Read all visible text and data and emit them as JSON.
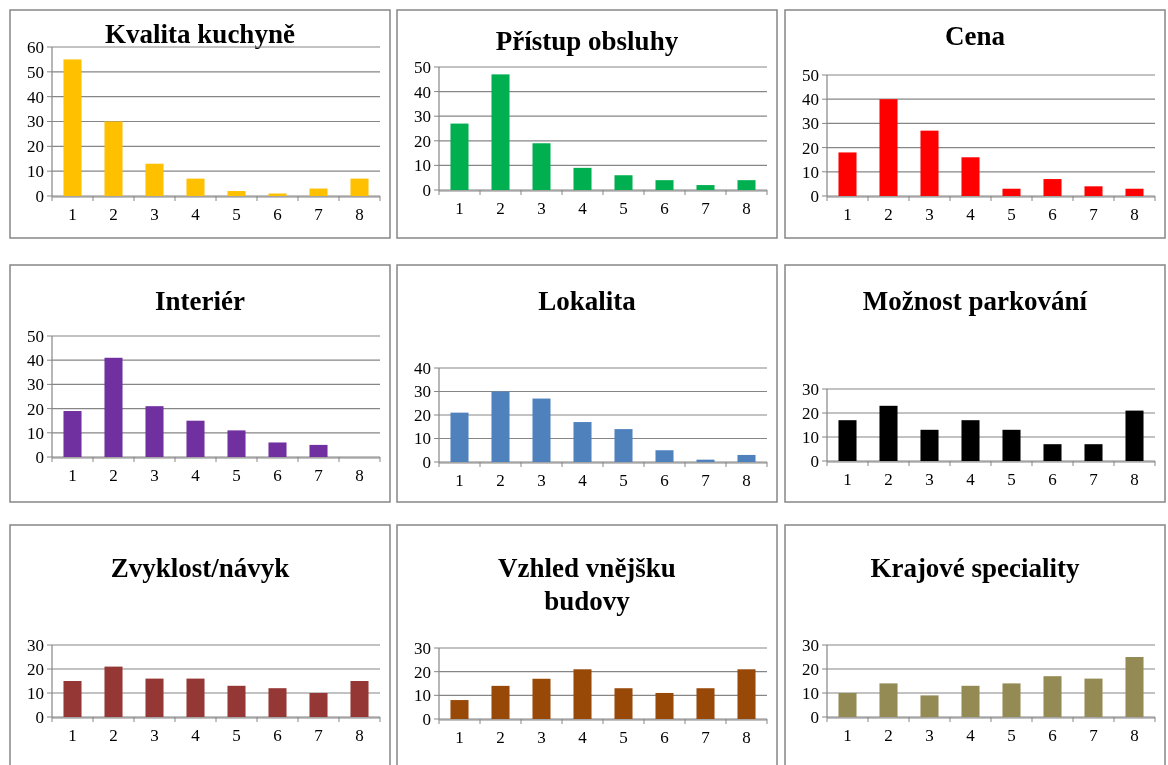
{
  "chart_data": [
    {
      "type": "bar",
      "title": "Kvalita kuchyně",
      "categories": [
        "1",
        "2",
        "3",
        "4",
        "5",
        "6",
        "7",
        "8"
      ],
      "values": [
        55,
        30,
        13,
        7,
        2,
        1,
        3,
        7
      ],
      "color": "#ffc000",
      "ylim": [
        0,
        60
      ],
      "yticks": [
        0,
        10,
        20,
        30,
        40,
        50,
        60
      ],
      "grid": "y"
    },
    {
      "type": "bar",
      "title": "Přístup obsluhy",
      "categories": [
        "1",
        "2",
        "3",
        "4",
        "5",
        "6",
        "7",
        "8"
      ],
      "values": [
        27,
        47,
        19,
        9,
        6,
        4,
        2,
        4
      ],
      "color": "#00b050",
      "ylim": [
        0,
        50
      ],
      "yticks": [
        0,
        10,
        20,
        30,
        40,
        50
      ],
      "grid": "y"
    },
    {
      "type": "bar",
      "title": "Cena",
      "categories": [
        "1",
        "2",
        "3",
        "4",
        "5",
        "6",
        "7",
        "8"
      ],
      "values": [
        18,
        40,
        27,
        16,
        3,
        7,
        4,
        3
      ],
      "color": "#ff0000",
      "ylim": [
        0,
        50
      ],
      "yticks": [
        0,
        10,
        20,
        30,
        40,
        50
      ],
      "grid": "y"
    },
    {
      "type": "bar",
      "title": "Interiér",
      "categories": [
        "1",
        "2",
        "3",
        "4",
        "5",
        "6",
        "7",
        "8"
      ],
      "values": [
        19,
        41,
        21,
        15,
        11,
        6,
        5,
        0
      ],
      "color": "#7030a0",
      "ylim": [
        0,
        50
      ],
      "yticks": [
        0,
        10,
        20,
        30,
        40,
        50
      ],
      "grid": "y"
    },
    {
      "type": "bar",
      "title": "Lokalita",
      "categories": [
        "1",
        "2",
        "3",
        "4",
        "5",
        "6",
        "7",
        "8"
      ],
      "values": [
        21,
        30,
        27,
        17,
        14,
        5,
        1,
        3
      ],
      "color": "#4f81bd",
      "ylim": [
        0,
        40
      ],
      "yticks": [
        0,
        10,
        20,
        30,
        40
      ],
      "grid": "y"
    },
    {
      "type": "bar",
      "title": "Možnost parkování",
      "categories": [
        "1",
        "2",
        "3",
        "4",
        "5",
        "6",
        "7",
        "8"
      ],
      "values": [
        17,
        23,
        13,
        17,
        13,
        7,
        7,
        21
      ],
      "color": "#000000",
      "ylim": [
        0,
        30
      ],
      "yticks": [
        0,
        10,
        20,
        30
      ],
      "grid": "y"
    },
    {
      "type": "bar",
      "title": "Zvyklost/návyk",
      "categories": [
        "1",
        "2",
        "3",
        "4",
        "5",
        "6",
        "7",
        "8"
      ],
      "values": [
        15,
        21,
        16,
        16,
        13,
        12,
        10,
        15
      ],
      "color": "#953735",
      "ylim": [
        0,
        30
      ],
      "yticks": [
        0,
        10,
        20,
        30
      ],
      "grid": "y"
    },
    {
      "type": "bar",
      "title": "Vzhled vnějšku budovy",
      "categories": [
        "1",
        "2",
        "3",
        "4",
        "5",
        "6",
        "7",
        "8"
      ],
      "values": [
        8,
        14,
        17,
        21,
        13,
        11,
        13,
        21
      ],
      "color": "#984807",
      "ylim": [
        0,
        30
      ],
      "yticks": [
        0,
        10,
        20,
        30
      ],
      "grid": "y"
    },
    {
      "type": "bar",
      "title": "Krajové speciality",
      "categories": [
        "1",
        "2",
        "3",
        "4",
        "5",
        "6",
        "7",
        "8"
      ],
      "values": [
        10,
        14,
        9,
        13,
        14,
        17,
        16,
        25
      ],
      "color": "#948a54",
      "ylim": [
        0,
        30
      ],
      "yticks": [
        0,
        10,
        20,
        30
      ],
      "grid": "y"
    }
  ]
}
